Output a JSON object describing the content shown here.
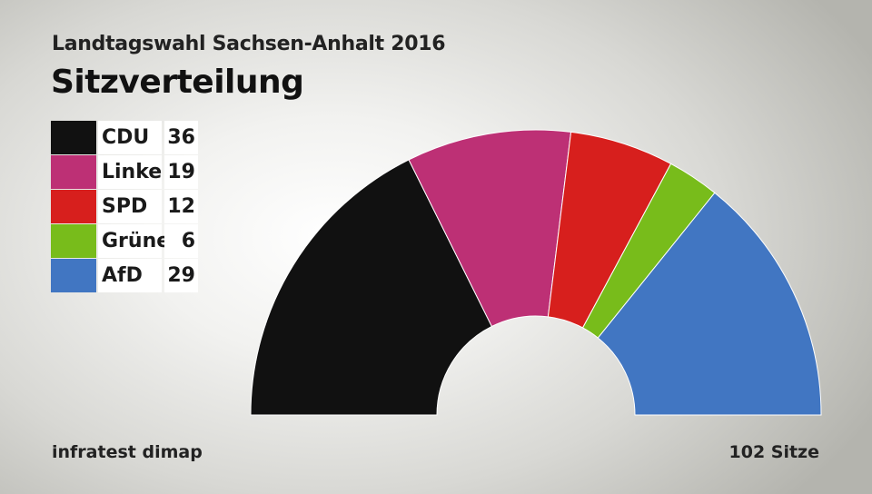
{
  "header": {
    "subtitle": "Landtagswahl Sachsen-Anhalt 2016",
    "title": "Sitzverteilung"
  },
  "footer": {
    "source": "infratest dimap",
    "total_label": "102 Sitze"
  },
  "chart_data": {
    "type": "pie",
    "variant": "semicircle-parliament",
    "title": "Sitzverteilung",
    "subtitle": "Landtagswahl Sachsen-Anhalt 2016",
    "total_seats": 102,
    "legend_placement": "left",
    "series": [
      {
        "name": "CDU",
        "value": 36,
        "color": "#111111"
      },
      {
        "name": "Linke",
        "value": 19,
        "color": "#bd3075"
      },
      {
        "name": "SPD",
        "value": 12,
        "color": "#d71f1d"
      },
      {
        "name": "Grüne",
        "value": 6,
        "color": "#78bc1b"
      },
      {
        "name": "AfD",
        "value": 29,
        "color": "#4176c2"
      }
    ]
  }
}
